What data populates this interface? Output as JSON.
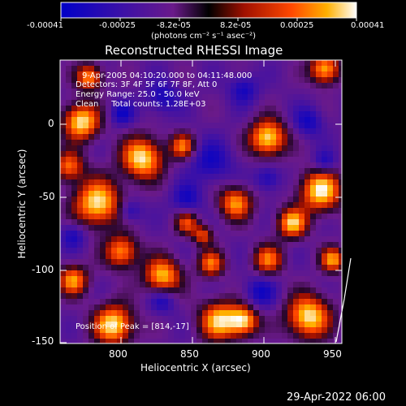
{
  "colorbar": {
    "tick_labels": [
      "-0.00041",
      "-0.00025",
      "-8.2e-05",
      "8.2e-05",
      "0.00025",
      "0.00041"
    ],
    "units": "(photons cm⁻² s⁻¹ asec⁻²)",
    "colors": [
      "#0000c8",
      "#3a10a8",
      "#6a1a8a",
      "#000000",
      "#a01000",
      "#ff4800",
      "#ffb000",
      "#ffffff"
    ]
  },
  "plot": {
    "title": "Reconstructed RHESSI Image",
    "xlabel": "Heliocentric X (arcsec)",
    "ylabel": "Heliocentric Y (arcsec)",
    "x_ticks": [
      "800",
      "850",
      "900",
      "950"
    ],
    "y_ticks": [
      "0",
      "-50",
      "-100",
      "-150"
    ]
  },
  "overlay": {
    "time_range": "9-Apr-2005 04:10:20.000 to 04:11:48.000",
    "detectors": "Detectors: 3F 4F 5F 6F 7F 8F, Att 0",
    "energy_range": "Energy Range: 25.0 - 50.0 keV",
    "clean_counts": "Clean     Total counts: 1.28E+03",
    "peak_position": "Position of Peak = [814,-17]"
  },
  "footer": {
    "timestamp": "29-Apr-2022 06:00"
  },
  "chart_data": {
    "type": "heatmap",
    "x_range_arcsec": [
      762,
      952
    ],
    "y_range_arcsec": [
      -150,
      23
    ],
    "color_range": [
      -0.00041,
      0.00041
    ],
    "peak_position": [
      814,
      -17
    ]
  }
}
